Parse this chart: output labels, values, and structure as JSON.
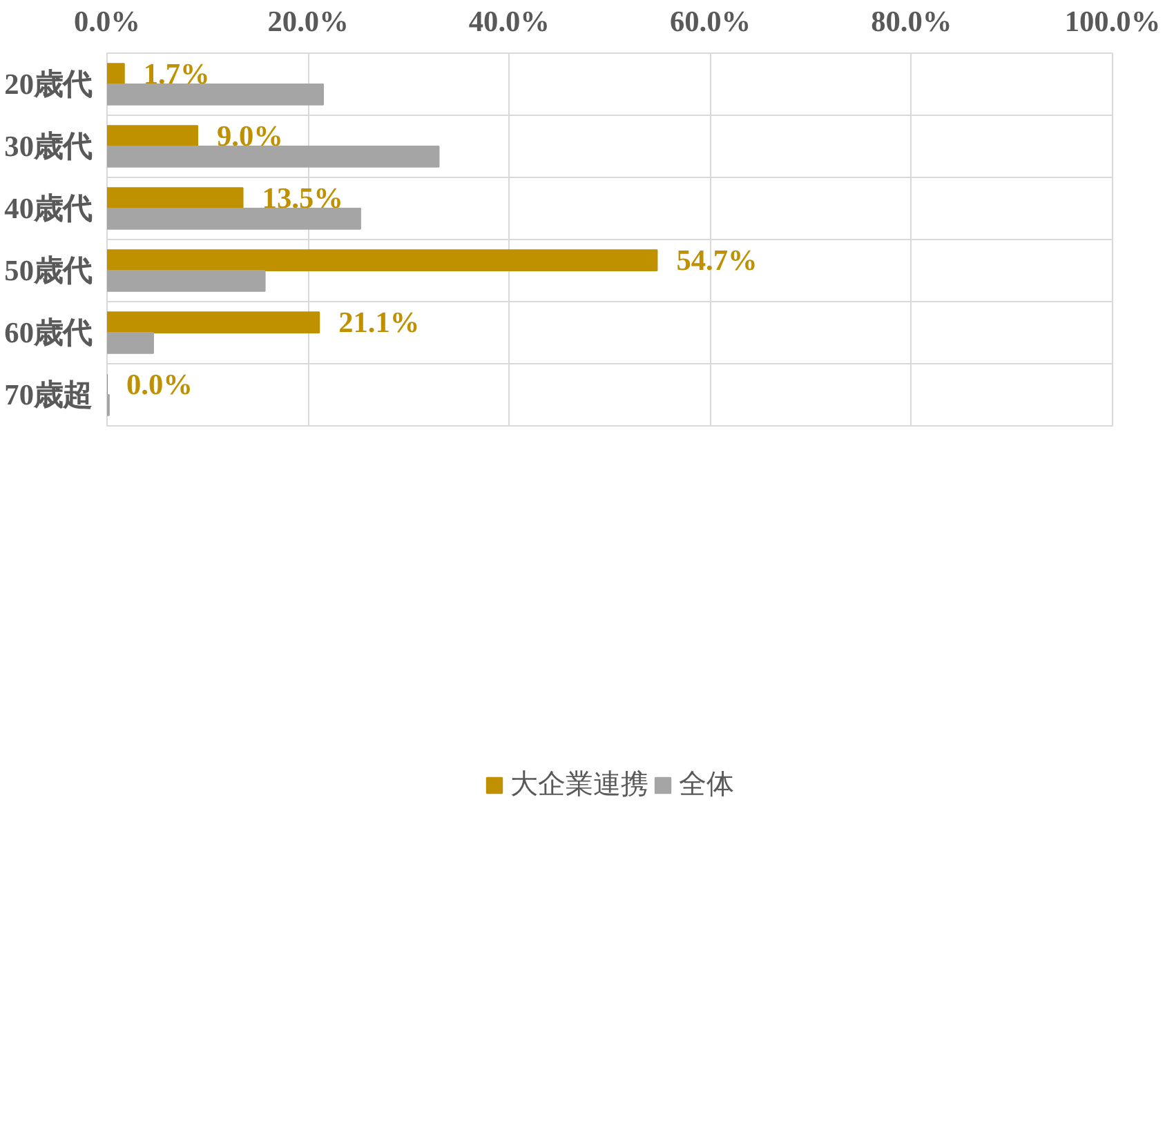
{
  "chart_data": {
    "type": "bar",
    "orientation": "horizontal",
    "categories": [
      "20歳代",
      "30歳代",
      "40歳代",
      "50歳代",
      "60歳代",
      "70歳超"
    ],
    "series": [
      {
        "name": "大企業連携",
        "color": "#bf9000",
        "values": [
          1.7,
          9.0,
          13.5,
          54.7,
          21.1,
          0.0
        ],
        "value_labels": [
          "1.7%",
          "9.0%",
          "13.5%",
          "54.7%",
          "21.1%",
          "0.0%"
        ]
      },
      {
        "name": "全体",
        "color": "#a5a5a5",
        "values": [
          21.5,
          33.0,
          25.2,
          15.7,
          4.6,
          0.2
        ]
      }
    ],
    "xlim": [
      0,
      100
    ],
    "xticks": [
      {
        "value": 0,
        "label": "0.0%"
      },
      {
        "value": 20,
        "label": "20.0%"
      },
      {
        "value": 40,
        "label": "40.0%"
      },
      {
        "value": 60,
        "label": "60.0%"
      },
      {
        "value": 80,
        "label": "80.0%"
      },
      {
        "value": 100,
        "label": "100.0%"
      }
    ],
    "grid": true,
    "legend": "bottom"
  }
}
